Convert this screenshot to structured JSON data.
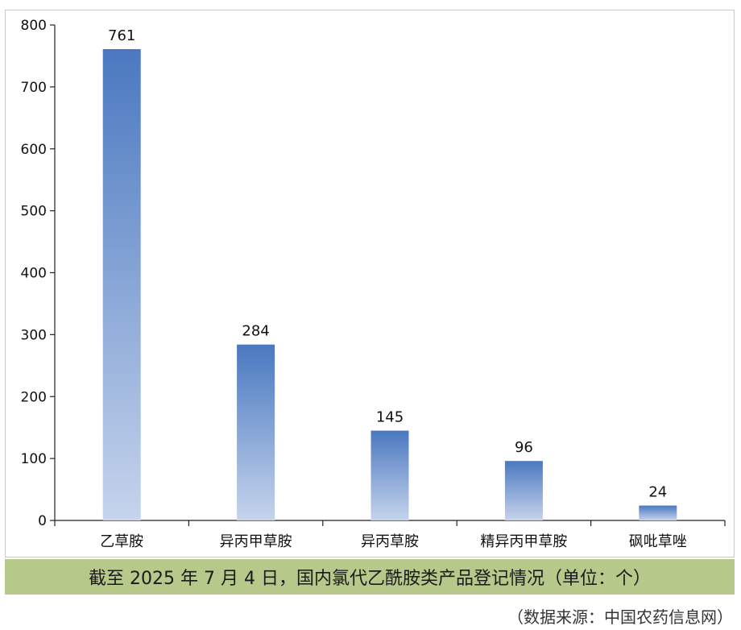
{
  "chart_data": {
    "type": "bar",
    "categories": [
      "乙草胺",
      "异丙甲草胺",
      "异丙草胺",
      "精异丙甲草胺",
      "砜吡草唑"
    ],
    "values": [
      761,
      284,
      145,
      96,
      24
    ],
    "ylim": [
      0,
      800
    ],
    "yticks": [
      0,
      100,
      200,
      300,
      400,
      500,
      600,
      700,
      800
    ],
    "grid": false,
    "legend": "none",
    "title": "",
    "xlabel": "",
    "ylabel": ""
  },
  "colors": {
    "bar_top": "#4a78c0",
    "bar_bottom": "#c6d4ec",
    "caption_band": "#b7c98a",
    "axis": "#222222"
  },
  "caption": "截至 2025 年 7 月 4 日，国内氯代乙酰胺类产品登记情况（单位：个）",
  "source": "（数据来源：中国农药信息网）"
}
